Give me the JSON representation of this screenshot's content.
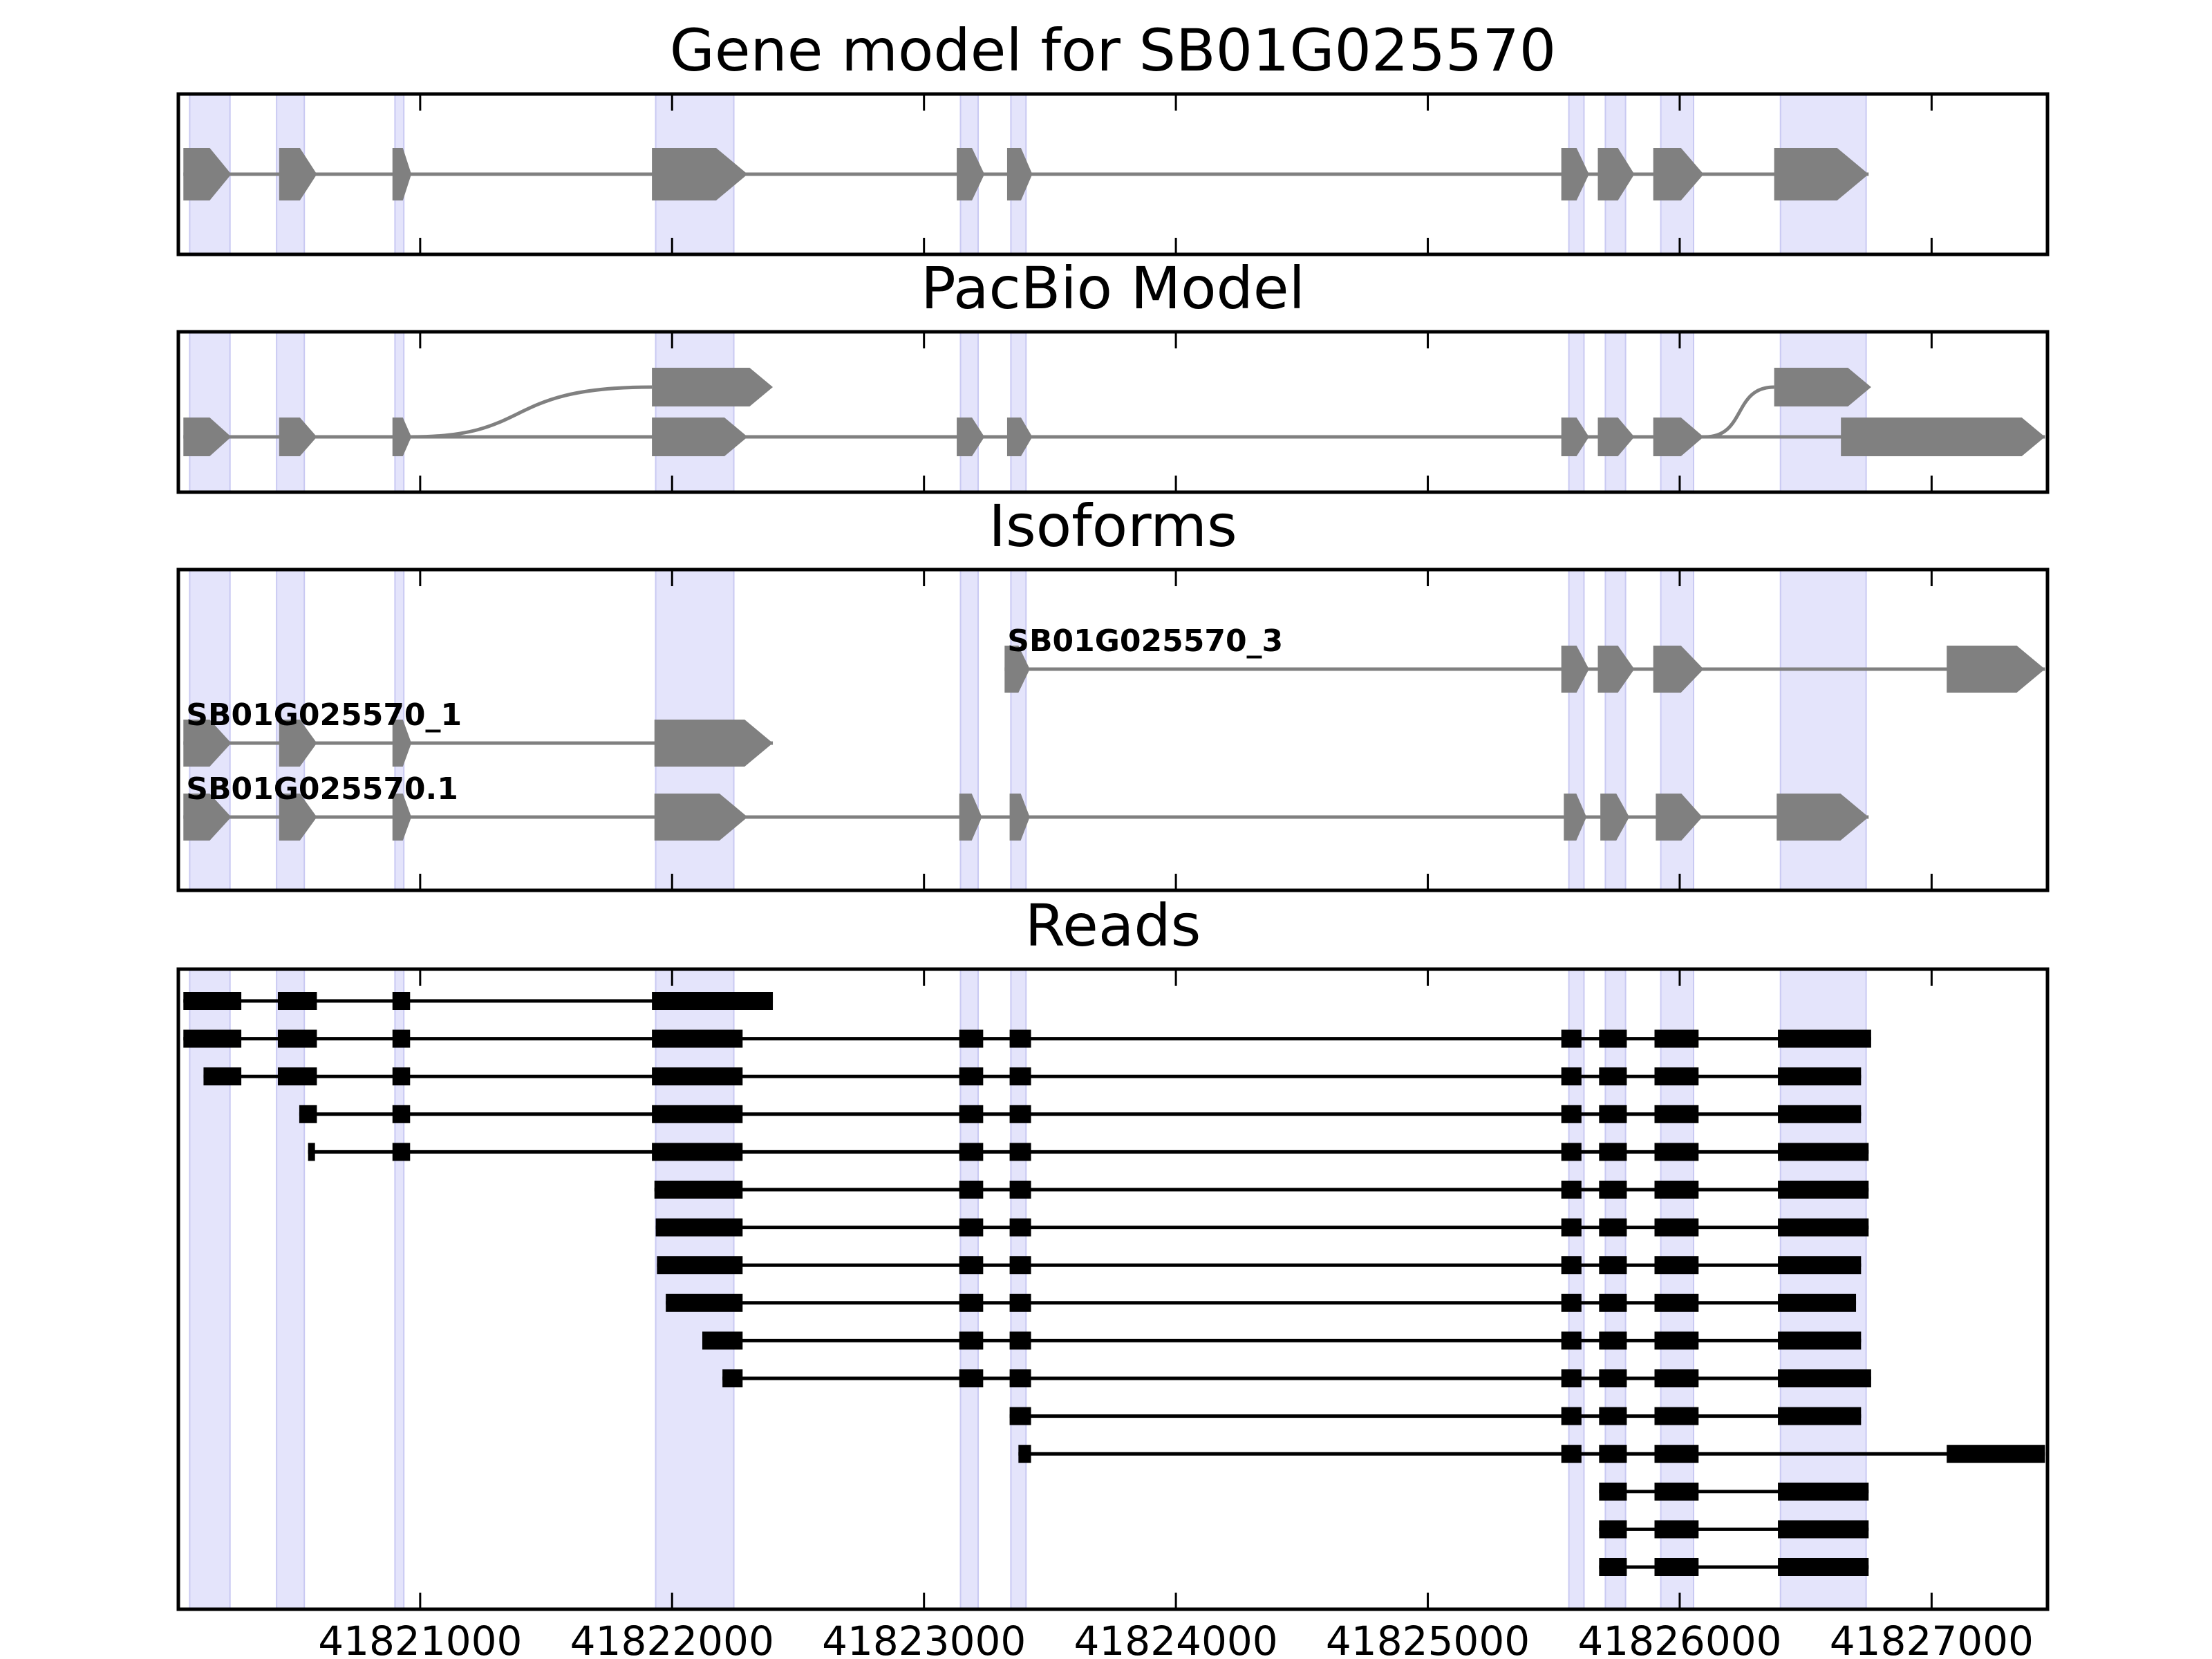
{
  "chart_data": {
    "type": "gene-structure",
    "x_range": [
      41820040,
      41827460
    ],
    "x_ticks": [
      41821000,
      41822000,
      41823000,
      41824000,
      41825000,
      41826000,
      41827000
    ],
    "x_tick_labels": [
      "41821000",
      "41822000",
      "41823000",
      "41824000",
      "41825000",
      "41826000",
      "41827000"
    ],
    "highlight_color": "#e4e4fb",
    "feature_color": "#808080",
    "read_color": "#000000",
    "exon_highlights": [
      [
        41820085,
        41820245
      ],
      [
        41820430,
        41820540
      ],
      [
        41820900,
        41820935
      ],
      [
        41821935,
        41822245
      ],
      [
        41823145,
        41823215
      ],
      [
        41823345,
        41823405
      ],
      [
        41825560,
        41825620
      ],
      [
        41825705,
        41825785
      ],
      [
        41825925,
        41826055
      ],
      [
        41826400,
        41826740
      ]
    ],
    "panels": [
      {
        "title": "Gene model for SB01G025570",
        "kind": "model",
        "tracks": [
          {
            "exons": [
              [
                41820060,
                41820250
              ],
              [
                41820440,
                41820590
              ],
              [
                41820890,
                41820965
              ],
              [
                41821920,
                41822300
              ],
              [
                41823130,
                41823240
              ],
              [
                41823330,
                41823430
              ],
              [
                41825530,
                41825640
              ],
              [
                41825675,
                41825820
              ],
              [
                41825895,
                41826095
              ],
              [
                41826375,
                41826750
              ]
            ]
          }
        ]
      },
      {
        "title": "PacBio Model",
        "kind": "model",
        "tracks": [
          {
            "exons": [
              [
                41821920,
                41822400
              ]
            ],
            "connect_from": 41820965
          },
          {
            "exons": [
              [
                41820060,
                41820250
              ],
              [
                41820440,
                41820590
              ],
              [
                41820890,
                41820965
              ],
              [
                41821920,
                41822300
              ],
              [
                41823130,
                41823240
              ],
              [
                41823330,
                41823430
              ],
              [
                41825530,
                41825640
              ],
              [
                41825675,
                41825820
              ],
              [
                41825895,
                41826095
              ],
              [
                41826640,
                41827450
              ]
            ],
            "skip_to_upper": [
              41826100,
              41826400
            ]
          },
          {
            "exons": [
              [
                41826375,
                41826760
              ]
            ],
            "hidden": false
          }
        ]
      },
      {
        "title": "Isoforms",
        "kind": "isoforms",
        "tracks": [
          {
            "label": "SB01G025570_3",
            "exons": [
              [
                41823320,
                41823420
              ],
              [
                41825530,
                41825640
              ],
              [
                41825675,
                41825820
              ],
              [
                41825895,
                41826095
              ],
              [
                41827060,
                41827450
              ]
            ]
          },
          {
            "label": "SB01G025570_1",
            "exons": [
              [
                41820060,
                41820250
              ],
              [
                41820440,
                41820590
              ],
              [
                41820890,
                41820965
              ],
              [
                41821930,
                41822400
              ]
            ]
          },
          {
            "label": "SB01G025570.1",
            "exons": [
              [
                41820060,
                41820250
              ],
              [
                41820440,
                41820590
              ],
              [
                41820890,
                41820965
              ],
              [
                41821930,
                41822300
              ],
              [
                41823140,
                41823230
              ],
              [
                41823340,
                41823420
              ],
              [
                41825540,
                41825630
              ],
              [
                41825685,
                41825800
              ],
              [
                41825905,
                41826090
              ],
              [
                41826385,
                41826750
              ]
            ]
          }
        ]
      },
      {
        "title": "Reads",
        "kind": "reads",
        "tracks": [
          {
            "exons": [
              [
                41820060,
                41820290
              ],
              [
                41820435,
                41820590
              ],
              [
                41820890,
                41820960
              ],
              [
                41821920,
                41822400
              ]
            ]
          },
          {
            "exons": [
              [
                41820060,
                41820290
              ],
              [
                41820435,
                41820590
              ],
              [
                41820890,
                41820960
              ],
              [
                41821920,
                41822280
              ],
              [
                41823140,
                41823235
              ],
              [
                41823340,
                41823425
              ],
              [
                41825530,
                41825610
              ],
              [
                41825680,
                41825790
              ],
              [
                41825900,
                41826075
              ],
              [
                41826390,
                41826760
              ]
            ]
          },
          {
            "exons": [
              [
                41820140,
                41820290
              ],
              [
                41820435,
                41820590
              ],
              [
                41820890,
                41820960
              ],
              [
                41821920,
                41822280
              ],
              [
                41823140,
                41823235
              ],
              [
                41823340,
                41823425
              ],
              [
                41825530,
                41825610
              ],
              [
                41825680,
                41825790
              ],
              [
                41825900,
                41826075
              ],
              [
                41826390,
                41826720
              ]
            ]
          },
          {
            "exons": [
              [
                41820520,
                41820590
              ],
              [
                41820890,
                41820960
              ],
              [
                41821920,
                41822280
              ],
              [
                41823140,
                41823235
              ],
              [
                41823340,
                41823425
              ],
              [
                41825530,
                41825610
              ],
              [
                41825680,
                41825790
              ],
              [
                41825900,
                41826075
              ],
              [
                41826390,
                41826720
              ]
            ]
          },
          {
            "exons": [
              [
                41820555,
                41820580
              ],
              [
                41820890,
                41820960
              ],
              [
                41821920,
                41822280
              ],
              [
                41823140,
                41823235
              ],
              [
                41823340,
                41823425
              ],
              [
                41825530,
                41825610
              ],
              [
                41825680,
                41825790
              ],
              [
                41825900,
                41826075
              ],
              [
                41826390,
                41826750
              ]
            ]
          },
          {
            "exons": [
              [
                41821930,
                41822280
              ],
              [
                41823140,
                41823235
              ],
              [
                41823340,
                41823425
              ],
              [
                41825530,
                41825610
              ],
              [
                41825680,
                41825790
              ],
              [
                41825900,
                41826075
              ],
              [
                41826390,
                41826750
              ]
            ]
          },
          {
            "exons": [
              [
                41821935,
                41822280
              ],
              [
                41823140,
                41823235
              ],
              [
                41823340,
                41823425
              ],
              [
                41825530,
                41825610
              ],
              [
                41825680,
                41825790
              ],
              [
                41825900,
                41826075
              ],
              [
                41826390,
                41826750
              ]
            ]
          },
          {
            "exons": [
              [
                41821940,
                41822280
              ],
              [
                41823140,
                41823235
              ],
              [
                41823340,
                41823425
              ],
              [
                41825530,
                41825610
              ],
              [
                41825680,
                41825790
              ],
              [
                41825900,
                41826075
              ],
              [
                41826390,
                41826720
              ]
            ]
          },
          {
            "exons": [
              [
                41821975,
                41822280
              ],
              [
                41823140,
                41823235
              ],
              [
                41823340,
                41823425
              ],
              [
                41825530,
                41825610
              ],
              [
                41825680,
                41825790
              ],
              [
                41825900,
                41826075
              ],
              [
                41826390,
                41826700
              ]
            ]
          },
          {
            "exons": [
              [
                41822120,
                41822280
              ],
              [
                41823140,
                41823235
              ],
              [
                41823340,
                41823425
              ],
              [
                41825530,
                41825610
              ],
              [
                41825680,
                41825790
              ],
              [
                41825900,
                41826075
              ],
              [
                41826390,
                41826720
              ]
            ]
          },
          {
            "exons": [
              [
                41822200,
                41822280
              ],
              [
                41823140,
                41823235
              ],
              [
                41823340,
                41823425
              ],
              [
                41825530,
                41825610
              ],
              [
                41825680,
                41825790
              ],
              [
                41825900,
                41826075
              ],
              [
                41826390,
                41826760
              ]
            ]
          },
          {
            "exons": [
              [
                41823340,
                41823425
              ],
              [
                41825530,
                41825610
              ],
              [
                41825680,
                41825790
              ],
              [
                41825900,
                41826075
              ],
              [
                41826390,
                41826720
              ]
            ]
          },
          {
            "exons": [
              [
                41823375,
                41823425
              ],
              [
                41825530,
                41825610
              ],
              [
                41825680,
                41825790
              ],
              [
                41825900,
                41826075
              ],
              [
                41827060,
                41827450
              ]
            ]
          },
          {
            "exons": [
              [
                41825680,
                41825790
              ],
              [
                41825900,
                41826075
              ],
              [
                41826390,
                41826750
              ]
            ]
          },
          {
            "exons": [
              [
                41825680,
                41825790
              ],
              [
                41825900,
                41826075
              ],
              [
                41826390,
                41826750
              ]
            ]
          },
          {
            "exons": [
              [
                41825680,
                41825790
              ],
              [
                41825900,
                41826075
              ],
              [
                41826390,
                41826750
              ]
            ]
          }
        ]
      }
    ]
  }
}
